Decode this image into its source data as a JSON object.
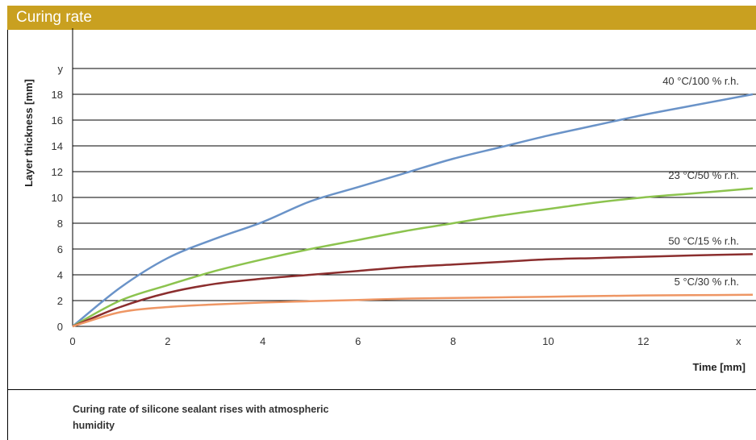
{
  "header": {
    "title": "Curing rate"
  },
  "caption": {
    "text": "Curing rate of silicone sealant rises with atmospheric humidity"
  },
  "chart_data": {
    "type": "line",
    "title": "",
    "xlabel": "Time [mm]",
    "ylabel": "Layer thickness [mm]",
    "xlim": [
      0,
      14.3
    ],
    "ylim": [
      0,
      20
    ],
    "x_ticks": [
      "0",
      "2",
      "4",
      "6",
      "8",
      "10",
      "12",
      "x"
    ],
    "y_ticks": [
      "0",
      "2",
      "4",
      "6",
      "8",
      "10",
      "12",
      "14",
      "16",
      "18",
      "y"
    ],
    "grid": "horizontal",
    "series": [
      {
        "name": "40 °C/100 % r.h.",
        "color": "#6a93c8",
        "x": [
          0,
          1,
          2,
          3,
          4,
          5,
          6,
          7,
          8,
          9,
          10,
          11,
          12,
          13,
          14.3
        ],
        "y": [
          0,
          3.0,
          5.3,
          6.8,
          8.1,
          9.7,
          10.8,
          11.9,
          13.0,
          13.9,
          14.8,
          15.6,
          16.4,
          17.1,
          18.0
        ]
      },
      {
        "name": "23 °C/50 % r.h.",
        "color": "#8cc34e",
        "x": [
          0,
          1,
          2,
          3,
          4,
          5,
          6,
          7,
          8,
          9,
          10,
          11,
          12,
          13,
          14.3
        ],
        "y": [
          0,
          2.0,
          3.2,
          4.3,
          5.2,
          6.0,
          6.7,
          7.4,
          8.0,
          8.6,
          9.1,
          9.6,
          10.0,
          10.3,
          10.7
        ]
      },
      {
        "name": "50 °C/15 % r.h.",
        "color": "#8b2e2e",
        "x": [
          0,
          1,
          2,
          3,
          4,
          5,
          6,
          7,
          8,
          9,
          10,
          11,
          12,
          13,
          14.3
        ],
        "y": [
          0,
          1.5,
          2.6,
          3.3,
          3.7,
          4.0,
          4.3,
          4.6,
          4.8,
          5.0,
          5.2,
          5.3,
          5.4,
          5.5,
          5.6
        ]
      },
      {
        "name": "5 °C/30 % r.h.",
        "color": "#ee9664",
        "x": [
          0,
          1,
          2,
          3,
          4,
          5,
          6,
          7,
          8,
          9,
          10,
          11,
          12,
          13,
          14.3
        ],
        "y": [
          0,
          1.1,
          1.5,
          1.7,
          1.85,
          1.95,
          2.05,
          2.15,
          2.2,
          2.25,
          2.3,
          2.35,
          2.4,
          2.42,
          2.45
        ]
      }
    ]
  }
}
